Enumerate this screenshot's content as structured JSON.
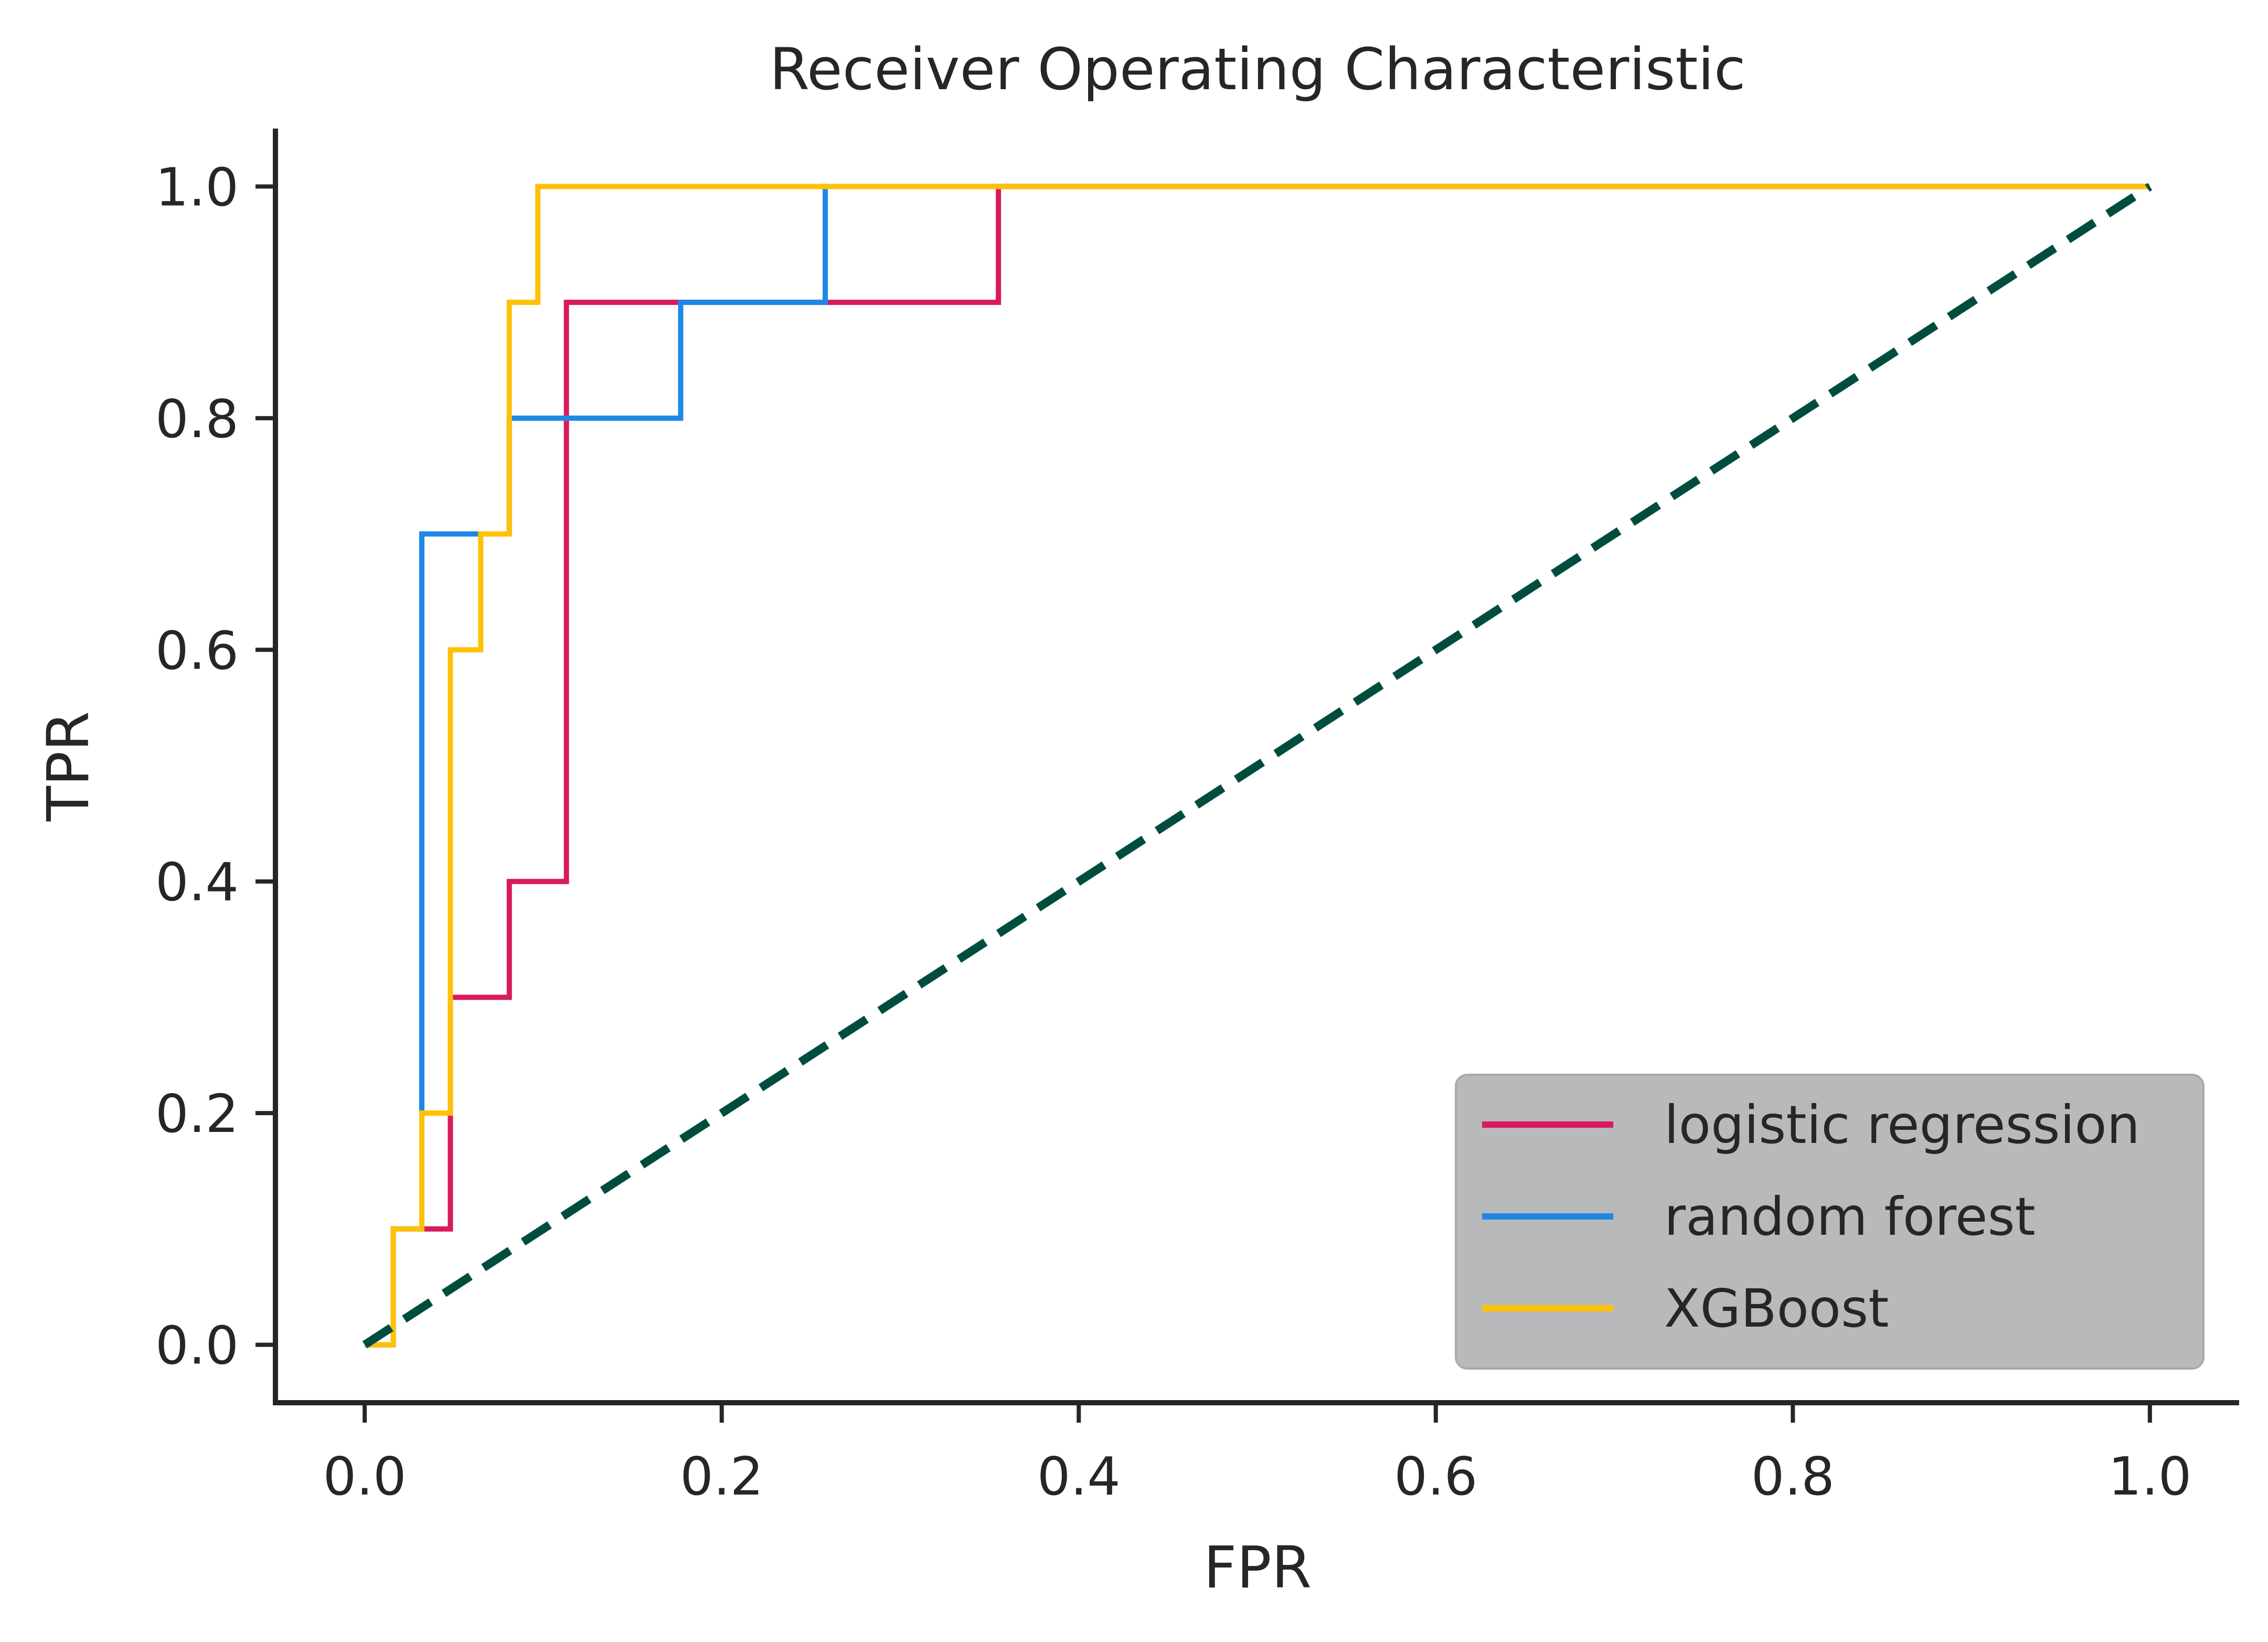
{
  "chart_data": {
    "type": "line",
    "title": "Receiver Operating Characteristic",
    "xlabel": "FPR",
    "ylabel": "TPR",
    "xlim": [
      -0.05,
      1.05
    ],
    "ylim": [
      -0.05,
      1.05
    ],
    "xticks": [
      0.0,
      0.2,
      0.4,
      0.6,
      0.8,
      1.0
    ],
    "yticks": [
      0.0,
      0.2,
      0.4,
      0.6,
      0.8,
      1.0
    ],
    "xtick_labels": [
      "0.0",
      "0.2",
      "0.4",
      "0.6",
      "0.8",
      "1.0"
    ],
    "ytick_labels": [
      "0.0",
      "0.2",
      "0.4",
      "0.6",
      "0.8",
      "1.0"
    ],
    "grid": false,
    "legend_position": "lower-right",
    "series": [
      {
        "name": "logistic regression",
        "color": "#D81B60",
        "style": "step",
        "x": [
          0.0,
          0.0,
          0.016,
          0.016,
          0.032,
          0.032,
          0.048,
          0.048,
          0.081,
          0.081,
          0.113,
          0.113,
          0.355,
          0.355,
          1.0
        ],
        "y": [
          0.0,
          0.0,
          0.0,
          0.1,
          0.1,
          0.1,
          0.1,
          0.3,
          0.3,
          0.4,
          0.4,
          0.9,
          0.9,
          1.0,
          1.0
        ]
      },
      {
        "name": "random forest",
        "color": "#1E88E5",
        "style": "step",
        "x": [
          0.0,
          0.0,
          0.016,
          0.016,
          0.032,
          0.032,
          0.065,
          0.065,
          0.081,
          0.081,
          0.177,
          0.177,
          0.258,
          0.258,
          1.0
        ],
        "y": [
          0.0,
          0.0,
          0.0,
          0.1,
          0.1,
          0.7,
          0.7,
          0.7,
          0.7,
          0.8,
          0.8,
          0.9,
          0.9,
          1.0,
          1.0
        ]
      },
      {
        "name": "XGBoost",
        "color": "#FFC107",
        "style": "step",
        "x": [
          0.0,
          0.016,
          0.016,
          0.032,
          0.032,
          0.048,
          0.048,
          0.065,
          0.065,
          0.081,
          0.081,
          0.097,
          0.097,
          1.0
        ],
        "y": [
          0.0,
          0.0,
          0.1,
          0.1,
          0.2,
          0.2,
          0.6,
          0.6,
          0.7,
          0.7,
          0.9,
          0.9,
          1.0,
          1.0
        ]
      },
      {
        "color": "#004D40",
        "style": "dashed",
        "x": [
          0.0,
          1.0
        ],
        "y": [
          0.0,
          1.0
        ]
      }
    ],
    "legend_bg": "#B8B9BA"
  }
}
